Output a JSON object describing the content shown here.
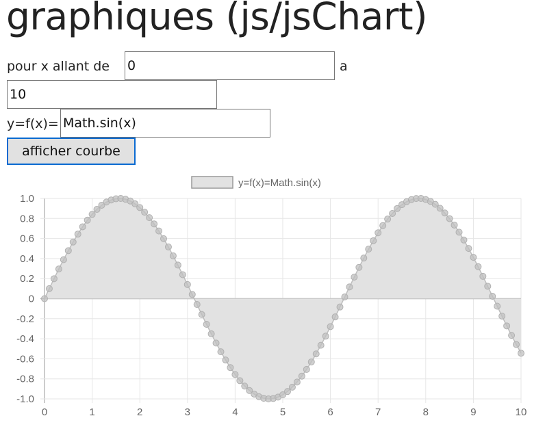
{
  "page": {
    "title": "graphiques (js/jsChart)"
  },
  "form": {
    "x_from_label": "pour x allant de",
    "x_from_value": "0",
    "x_to_label": "a",
    "x_to_value": "10",
    "fx_label": "y=f(x)=",
    "fx_value": "Math.sin(x)",
    "submit_label": "afficher courbe"
  },
  "chart_data": {
    "type": "area",
    "legend": "y=f(x)=Math.sin(x)",
    "legend_position": "top",
    "function": "Math.sin(x)",
    "x_range": [
      0,
      10
    ],
    "x_step": 0.1,
    "x_ticks": [
      "0",
      "1",
      "2",
      "3",
      "4",
      "5",
      "6",
      "7",
      "8",
      "9",
      "10"
    ],
    "y_ticks": [
      "1.0",
      "0.8",
      "0.6",
      "0.4",
      "0.2",
      "0",
      "-0.2",
      "-0.4",
      "-0.6",
      "-0.8",
      "-1.0"
    ],
    "ylim": [
      -1,
      1
    ],
    "grid": true,
    "colors": {
      "fill": "#e2e2e2",
      "line": "#bdbdbd",
      "point": "#c0c0c0",
      "grid": "#e6e6e6",
      "axis": "#999999",
      "zero_line": "#b0b0b0"
    },
    "series": [
      {
        "name": "y=f(x)=Math.sin(x)",
        "x": [
          0,
          0.1,
          0.2,
          0.3,
          0.4,
          0.5,
          0.6,
          0.7,
          0.8,
          0.9,
          1,
          1.1,
          1.2,
          1.3,
          1.4,
          1.5,
          1.6,
          1.7,
          1.8,
          1.9,
          2,
          2.1,
          2.2,
          2.3,
          2.4,
          2.5,
          2.6,
          2.7,
          2.8,
          2.9,
          3,
          3.1,
          3.2,
          3.3,
          3.4,
          3.5,
          3.6,
          3.7,
          3.8,
          3.9,
          4,
          4.1,
          4.2,
          4.3,
          4.4,
          4.5,
          4.6,
          4.7,
          4.8,
          4.9,
          5,
          5.1,
          5.2,
          5.3,
          5.4,
          5.5,
          5.6,
          5.7,
          5.8,
          5.9,
          6,
          6.1,
          6.2,
          6.3,
          6.4,
          6.5,
          6.6,
          6.7,
          6.8,
          6.9,
          7,
          7.1,
          7.2,
          7.3,
          7.4,
          7.5,
          7.6,
          7.7,
          7.8,
          7.9,
          8,
          8.1,
          8.2,
          8.3,
          8.4,
          8.5,
          8.6,
          8.7,
          8.8,
          8.9,
          9,
          9.1,
          9.2,
          9.3,
          9.4,
          9.5,
          9.6,
          9.7,
          9.8,
          9.9,
          10
        ],
        "y": [
          0,
          0.1,
          0.199,
          0.296,
          0.389,
          0.479,
          0.565,
          0.644,
          0.717,
          0.783,
          0.841,
          0.891,
          0.932,
          0.964,
          0.985,
          0.997,
          1,
          0.992,
          0.974,
          0.946,
          0.909,
          0.863,
          0.808,
          0.746,
          0.675,
          0.598,
          0.516,
          0.427,
          0.335,
          0.239,
          0.141,
          0.042,
          -0.058,
          -0.158,
          -0.256,
          -0.351,
          -0.443,
          -0.53,
          -0.612,
          -0.688,
          -0.757,
          -0.818,
          -0.872,
          -0.916,
          -0.952,
          -0.978,
          -0.994,
          -1,
          -0.996,
          -0.982,
          -0.959,
          -0.926,
          -0.883,
          -0.832,
          -0.773,
          -0.706,
          -0.631,
          -0.551,
          -0.465,
          -0.374,
          -0.279,
          -0.182,
          -0.083,
          0.017,
          0.117,
          0.215,
          0.312,
          0.405,
          0.494,
          0.578,
          0.657,
          0.729,
          0.794,
          0.85,
          0.899,
          0.938,
          0.968,
          0.988,
          0.999,
          1,
          0.989,
          0.97,
          0.941,
          0.902,
          0.855,
          0.798,
          0.734,
          0.663,
          0.585,
          0.501,
          0.412,
          0.319,
          0.223,
          0.124,
          0.024,
          -0.075,
          -0.174,
          -0.272,
          -0.366,
          -0.457,
          -0.544
        ]
      }
    ]
  }
}
